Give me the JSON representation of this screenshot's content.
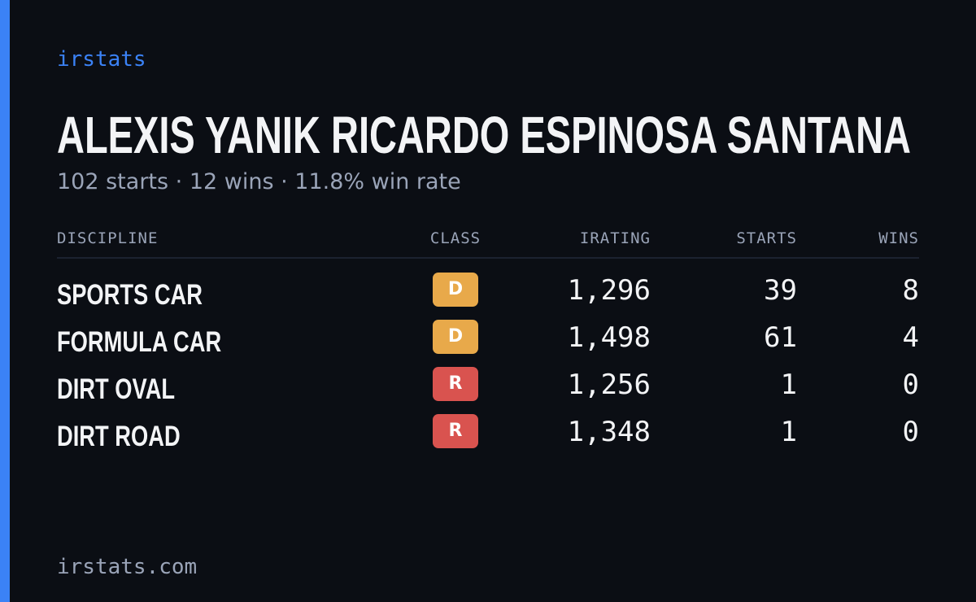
{
  "brand": "irstats",
  "title": "ALEXIS YANIK RICARDO ESPINOSA SANTANA",
  "subtitle": "102 starts · 12 wins · 11.8% win rate",
  "table": {
    "headers": [
      "DISCIPLINE",
      "CLASS",
      "IRATING",
      "STARTS",
      "WINS"
    ],
    "rows": [
      [
        "SPORTS CAR",
        "D",
        "1,296",
        "39",
        "8"
      ],
      [
        "FORMULA CAR",
        "D",
        "1,498",
        "61",
        "4"
      ],
      [
        "DIRT OVAL",
        "R",
        "1,256",
        "1",
        "0"
      ],
      [
        "DIRT ROAD",
        "R",
        "1,348",
        "1",
        "0"
      ]
    ]
  },
  "footer": "irstats.com"
}
